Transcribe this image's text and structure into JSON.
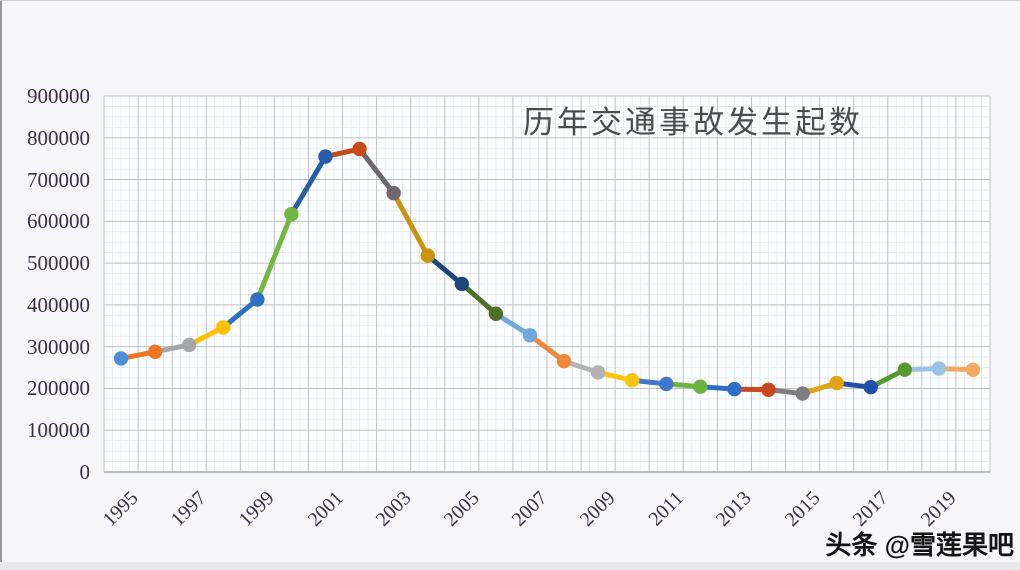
{
  "page": {
    "watermark": "头条 @雪莲果吧",
    "background": "#f6f6f8"
  },
  "chart_data": {
    "type": "line",
    "title": "历年交通事故发生起数",
    "xlabel": "",
    "ylabel": "",
    "legend": "none",
    "grid": "major+minor",
    "marker": "circle",
    "ylim": [
      0,
      900000
    ],
    "x": [
      1995,
      1996,
      1997,
      1998,
      1999,
      2000,
      2001,
      2002,
      2003,
      2004,
      2005,
      2006,
      2007,
      2008,
      2009,
      2010,
      2011,
      2012,
      2013,
      2014,
      2015,
      2016,
      2017,
      2018,
      2019,
      2020
    ],
    "values": [
      271843,
      287685,
      304217,
      346129,
      412860,
      616971,
      754919,
      773137,
      667507,
      517889,
      450254,
      378781,
      327209,
      265204,
      238351,
      219521,
      210812,
      204196,
      198394,
      196812,
      187781,
      212846,
      203049,
      244937,
      247646,
      244674
    ],
    "point_colors": [
      "#4a8fd5",
      "#ee7522",
      "#a6a6a6",
      "#fec002",
      "#2d6fc1",
      "#72b741",
      "#275da8",
      "#c84b17",
      "#6e696c",
      "#c99410",
      "#1f4679",
      "#4d6f28",
      "#6da9dd",
      "#f0883a",
      "#b3b3b6",
      "#fdc40e",
      "#4377cc",
      "#6db33f",
      "#2d6fc4",
      "#c9481e",
      "#7f7d80",
      "#e0a414",
      "#2050a8",
      "#57982f",
      "#9cc3e5",
      "#f5a963"
    ],
    "x_tick_labels": [
      "1995",
      "1997",
      "1999",
      "2001",
      "2003",
      "2005",
      "2007",
      "2009",
      "2011",
      "2013",
      "2015",
      "2017",
      "2019"
    ],
    "y_ticks": [
      {
        "label": "0",
        "value": 0
      },
      {
        "label": "100000",
        "value": 100000
      },
      {
        "label": "200000",
        "value": 200000
      },
      {
        "label": "300000",
        "value": 300000
      },
      {
        "label": "400000",
        "value": 400000
      },
      {
        "label": "500000",
        "value": 500000
      },
      {
        "label": "600000",
        "value": 600000
      },
      {
        "label": "700000",
        "value": 700000
      },
      {
        "label": "800000",
        "value": 800000
      },
      {
        "label": "900000",
        "value": 900000
      }
    ],
    "colors": {
      "grid_minor": "#e5e8f0",
      "grid_major": "#bdc1ca",
      "axis_line": "#a3a7af",
      "plot_bg": "#fcfdfe",
      "title_text": "#4c4c4e",
      "tick_text": "#3a2f45",
      "watermark_text": "#141414"
    }
  }
}
